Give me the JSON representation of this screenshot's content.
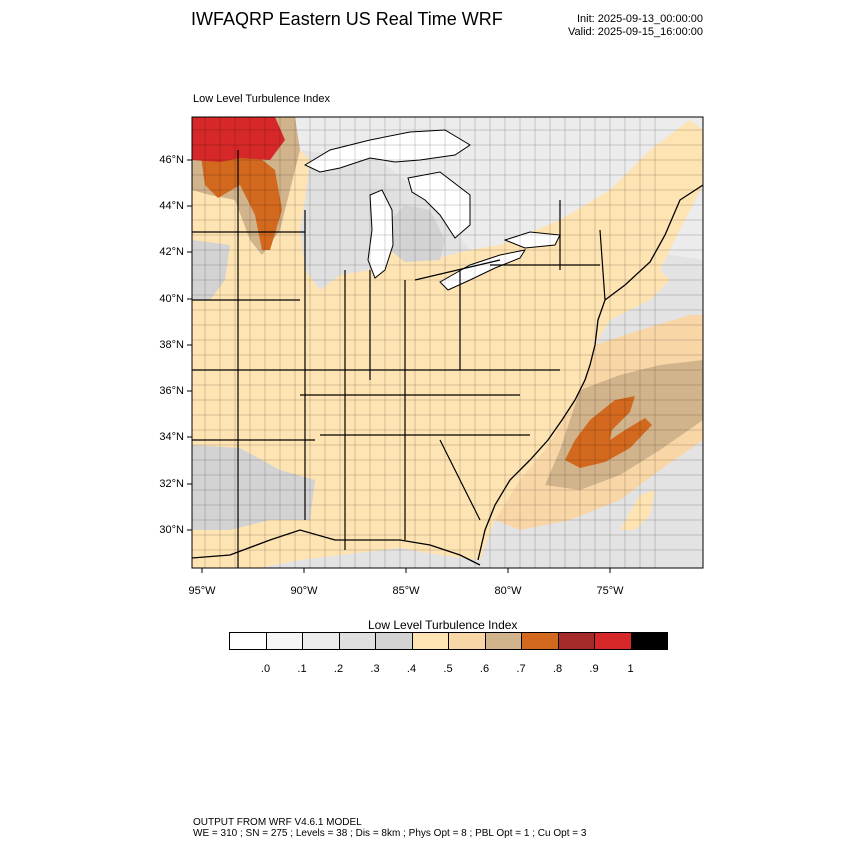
{
  "header": {
    "title": "IWFAQRP Eastern US Real Time WRF",
    "init": "Init: 2025-09-13_00:00:00",
    "valid": "Valid: 2025-09-15_16:00:00"
  },
  "map": {
    "field_label": "Low Level Turbulence Index",
    "lat_labels": [
      "46°N",
      "44°N",
      "42°N",
      "40°N",
      "38°N",
      "36°N",
      "34°N",
      "32°N",
      "30°N"
    ],
    "lon_labels": [
      "95°W",
      "90°W",
      "85°W",
      "80°W",
      "75°W"
    ]
  },
  "colorbar": {
    "title": "Low Level Turbulence Index",
    "colors": [
      "#ffffff",
      "#f6f6f6",
      "#ececec",
      "#e0e0e0",
      "#d3d3d3",
      "#ffe4b3",
      "#f8d6a6",
      "#d2b48c",
      "#d2691e",
      "#a52a2a",
      "#d62828",
      "#000000"
    ],
    "ticks": [
      ".0",
      ".1",
      ".2",
      ".3",
      ".4",
      ".5",
      ".6",
      ".7",
      ".8",
      ".9",
      "1"
    ]
  },
  "footer": {
    "line1": "OUTPUT FROM WRF V4.6.1 MODEL",
    "line2": "WE = 310 ; SN = 275 ; Levels = 38 ; Dis = 8km ; Phys Opt = 8 ; PBL Opt = 1 ; Cu Opt = 3"
  }
}
